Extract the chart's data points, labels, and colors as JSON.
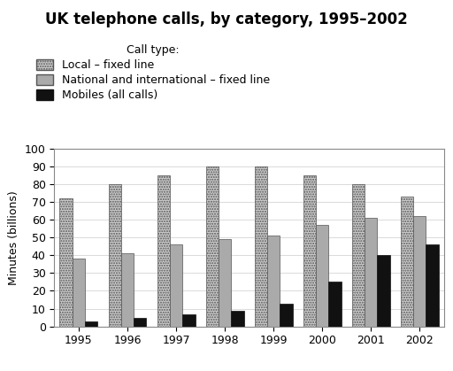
{
  "title": "UK telephone calls, by category, 1995–2002",
  "ylabel": "Minutes (billions)",
  "years": [
    1995,
    1996,
    1997,
    1998,
    1999,
    2000,
    2001,
    2002
  ],
  "local_fixed": [
    72,
    80,
    85,
    90,
    90,
    85,
    80,
    73
  ],
  "national_fixed": [
    38,
    41,
    46,
    49,
    51,
    57,
    61,
    62
  ],
  "mobiles": [
    3,
    5,
    7,
    9,
    13,
    25,
    40,
    46
  ],
  "ylim": [
    0,
    100
  ],
  "yticks": [
    0,
    10,
    20,
    30,
    40,
    50,
    60,
    70,
    80,
    90,
    100
  ],
  "legend_labels": [
    "Local – fixed line",
    "National and international – fixed line",
    "Mobiles (all calls)"
  ],
  "legend_title": "Call type:",
  "color_national": "#aaaaaa",
  "color_mobiles": "#111111",
  "title_fontsize": 12,
  "legend_fontsize": 9,
  "axis_fontsize": 9,
  "bar_width": 0.26
}
